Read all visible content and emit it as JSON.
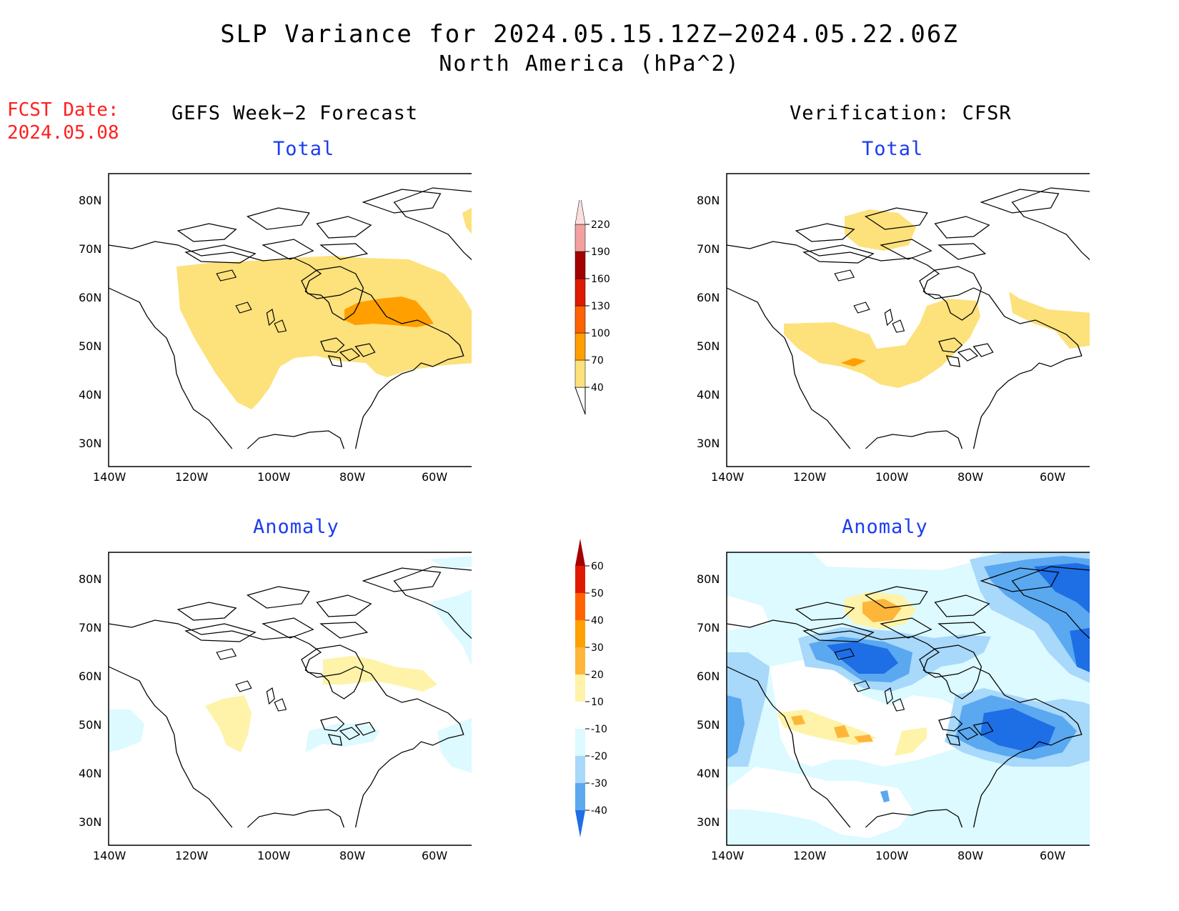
{
  "title_line1": "SLP Variance for 2024.05.15.12Z−2024.05.22.06Z",
  "title_line2": "North America (hPa^2)",
  "fcst_date_label": "FCST Date:",
  "fcst_date_value": "2024.05.08",
  "left_column_heading": "GEFS Week−2 Forecast",
  "right_column_heading": "Verification: CFSR",
  "panel_total_label": "Total",
  "panel_anomaly_label": "Anomaly",
  "lat_ticks": [
    "80N",
    "70N",
    "60N",
    "50N",
    "40N",
    "30N"
  ],
  "lon_ticks": [
    "140W",
    "120W",
    "100W",
    "80W",
    "60W"
  ],
  "colorbar_total": {
    "levels": [
      "40",
      "70",
      "100",
      "130",
      "160",
      "190",
      "220"
    ],
    "colors": [
      "#fde17b",
      "#ff9f00",
      "#ff6200",
      "#e01a00",
      "#a40000",
      "#f2a0a0",
      "#fbdede"
    ]
  },
  "colorbar_anomaly": {
    "levels": [
      "60",
      "50",
      "40",
      "30",
      "20",
      "10",
      "-10",
      "-20",
      "-30",
      "-40"
    ],
    "colors_top_down": [
      "#a40000",
      "#e01a00",
      "#ff6200",
      "#ff9f00",
      "#fdb63a",
      "#fef3a8",
      "#ffffff",
      "#dcfaff",
      "#a8d8fa",
      "#5aa8f0",
      "#1e6ee6"
    ]
  },
  "colors": {
    "yellow": "#fde17b",
    "orange": "#ff9f00",
    "pale_yellow": "#fef3a8",
    "light_blue": "#dcfaff",
    "blue1": "#a8d8fa",
    "blue2": "#5aa8f0",
    "blue3": "#1e6ee6"
  }
}
